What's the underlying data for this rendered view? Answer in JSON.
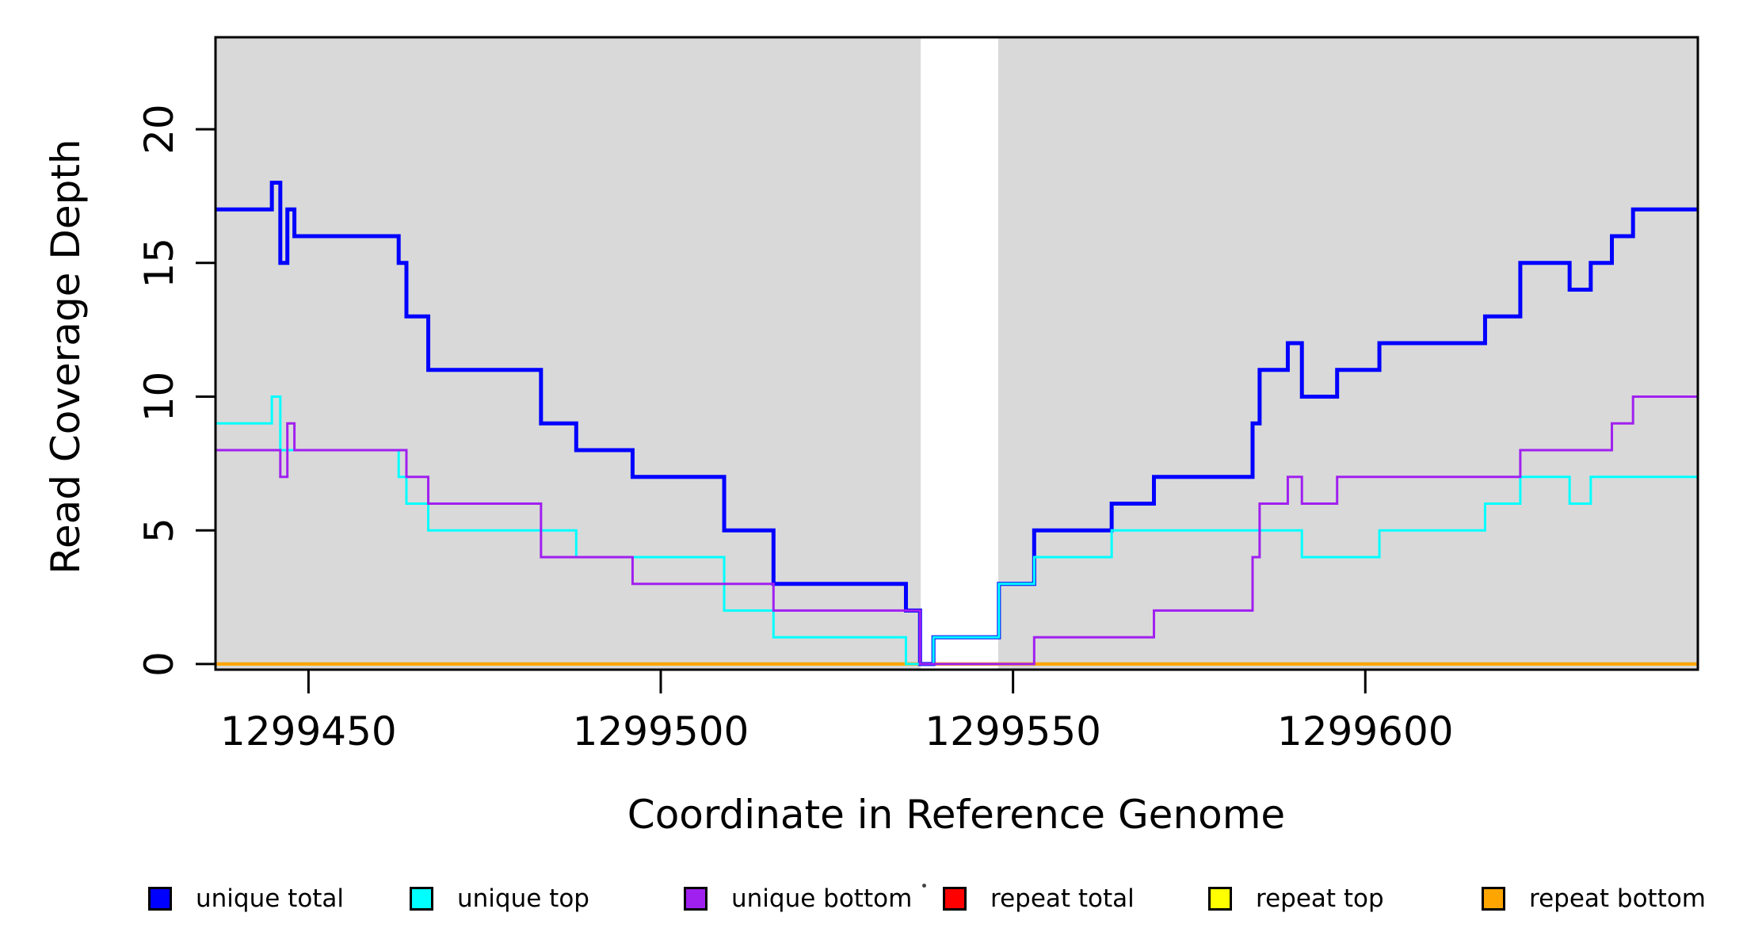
{
  "chart_data": {
    "type": "line",
    "subtype": "step-coverage-plot",
    "title": "",
    "xlabel": "Coordinate in Reference Genome",
    "ylabel": "Read Coverage Depth",
    "xlim": [
      1299436.8,
      1299647.2
    ],
    "ylim": [
      -0.21,
      23.44
    ],
    "x_ticks": [
      1299450,
      1299500,
      1299550,
      1299600
    ],
    "y_ticks": [
      0,
      5,
      10,
      15,
      20
    ],
    "grid": false,
    "plot_background_color": "#ffffff",
    "shaded_bands": [
      {
        "name": "left-gray-band",
        "from": 1299436.8,
        "to": 1299536.9,
        "color": "#D9D9D9"
      },
      {
        "name": "right-gray-band",
        "from": 1299547.9,
        "to": 1299647.2,
        "color": "#D9D9D9"
      }
    ],
    "series": [
      {
        "name": "repeat total",
        "color": "#FF0000",
        "line_width": 4,
        "steps": [
          [
            1299436.8,
            0
          ]
        ]
      },
      {
        "name": "repeat top",
        "color": "#FFFF00",
        "line_width": 4,
        "steps": [
          [
            1299436.8,
            0
          ]
        ]
      },
      {
        "name": "repeat bottom",
        "color": "#FFA500",
        "line_width": 4,
        "steps": [
          [
            1299436.8,
            0
          ]
        ]
      },
      {
        "name": "unique total",
        "color": "#0000FF",
        "line_width": 5,
        "steps": [
          [
            1299436.8,
            17
          ],
          [
            1299444.8,
            18
          ],
          [
            1299446,
            15
          ],
          [
            1299447,
            17
          ],
          [
            1299448,
            16
          ],
          [
            1299462.8,
            15
          ],
          [
            1299463.9,
            13
          ],
          [
            1299467,
            11
          ],
          [
            1299483,
            9
          ],
          [
            1299488,
            8
          ],
          [
            1299496,
            7
          ],
          [
            1299509,
            5
          ],
          [
            1299516,
            3
          ],
          [
            1299534.8,
            2
          ],
          [
            1299536.8,
            0
          ],
          [
            1299538.7,
            1
          ],
          [
            1299548,
            3
          ],
          [
            1299553,
            5
          ],
          [
            1299564,
            6
          ],
          [
            1299570,
            7
          ],
          [
            1299584,
            9
          ],
          [
            1299585,
            11
          ],
          [
            1299589,
            12
          ],
          [
            1299591,
            10
          ],
          [
            1299596,
            11
          ],
          [
            1299602,
            12
          ],
          [
            1299617,
            13
          ],
          [
            1299622,
            15
          ],
          [
            1299629,
            14
          ],
          [
            1299632,
            15
          ],
          [
            1299635,
            16
          ],
          [
            1299638,
            17
          ]
        ]
      },
      {
        "name": "unique top",
        "color": "#00FFFF",
        "line_width": 3,
        "steps": [
          [
            1299436.8,
            9
          ],
          [
            1299444.8,
            10
          ],
          [
            1299446,
            8
          ],
          [
            1299462.8,
            7
          ],
          [
            1299463.9,
            6
          ],
          [
            1299467,
            5
          ],
          [
            1299488,
            4
          ],
          [
            1299509,
            2
          ],
          [
            1299516,
            1
          ],
          [
            1299534.8,
            0
          ],
          [
            1299538.7,
            1
          ],
          [
            1299548,
            3
          ],
          [
            1299553,
            4
          ],
          [
            1299564,
            5
          ],
          [
            1299591,
            4
          ],
          [
            1299602,
            5
          ],
          [
            1299617,
            6
          ],
          [
            1299622,
            7
          ],
          [
            1299629,
            6
          ],
          [
            1299632,
            7
          ]
        ]
      },
      {
        "name": "unique bottom",
        "color": "#A020F0",
        "line_width": 3,
        "steps": [
          [
            1299436.8,
            8
          ],
          [
            1299446,
            7
          ],
          [
            1299447,
            9
          ],
          [
            1299448,
            8
          ],
          [
            1299463.9,
            7
          ],
          [
            1299467,
            6
          ],
          [
            1299483,
            4
          ],
          [
            1299496,
            3
          ],
          [
            1299516,
            2
          ],
          [
            1299536.8,
            0
          ],
          [
            1299553,
            1
          ],
          [
            1299570,
            2
          ],
          [
            1299584,
            4
          ],
          [
            1299585,
            6
          ],
          [
            1299589,
            7
          ],
          [
            1299591,
            6
          ],
          [
            1299596,
            7
          ],
          [
            1299622,
            8
          ],
          [
            1299635,
            9
          ],
          [
            1299638,
            10
          ]
        ]
      }
    ],
    "legend": {
      "position": "bottom",
      "items": [
        {
          "label": "unique total",
          "color": "#0000FF"
        },
        {
          "label": "unique top",
          "color": "#00FFFF"
        },
        {
          "label": "unique bottom",
          "color": "#A020F0"
        },
        {
          "label": "repeat total",
          "color": "#FF0000"
        },
        {
          "label": "repeat top",
          "color": "#FFFF00"
        },
        {
          "label": "repeat bottom",
          "color": "#FFA500"
        }
      ]
    }
  }
}
